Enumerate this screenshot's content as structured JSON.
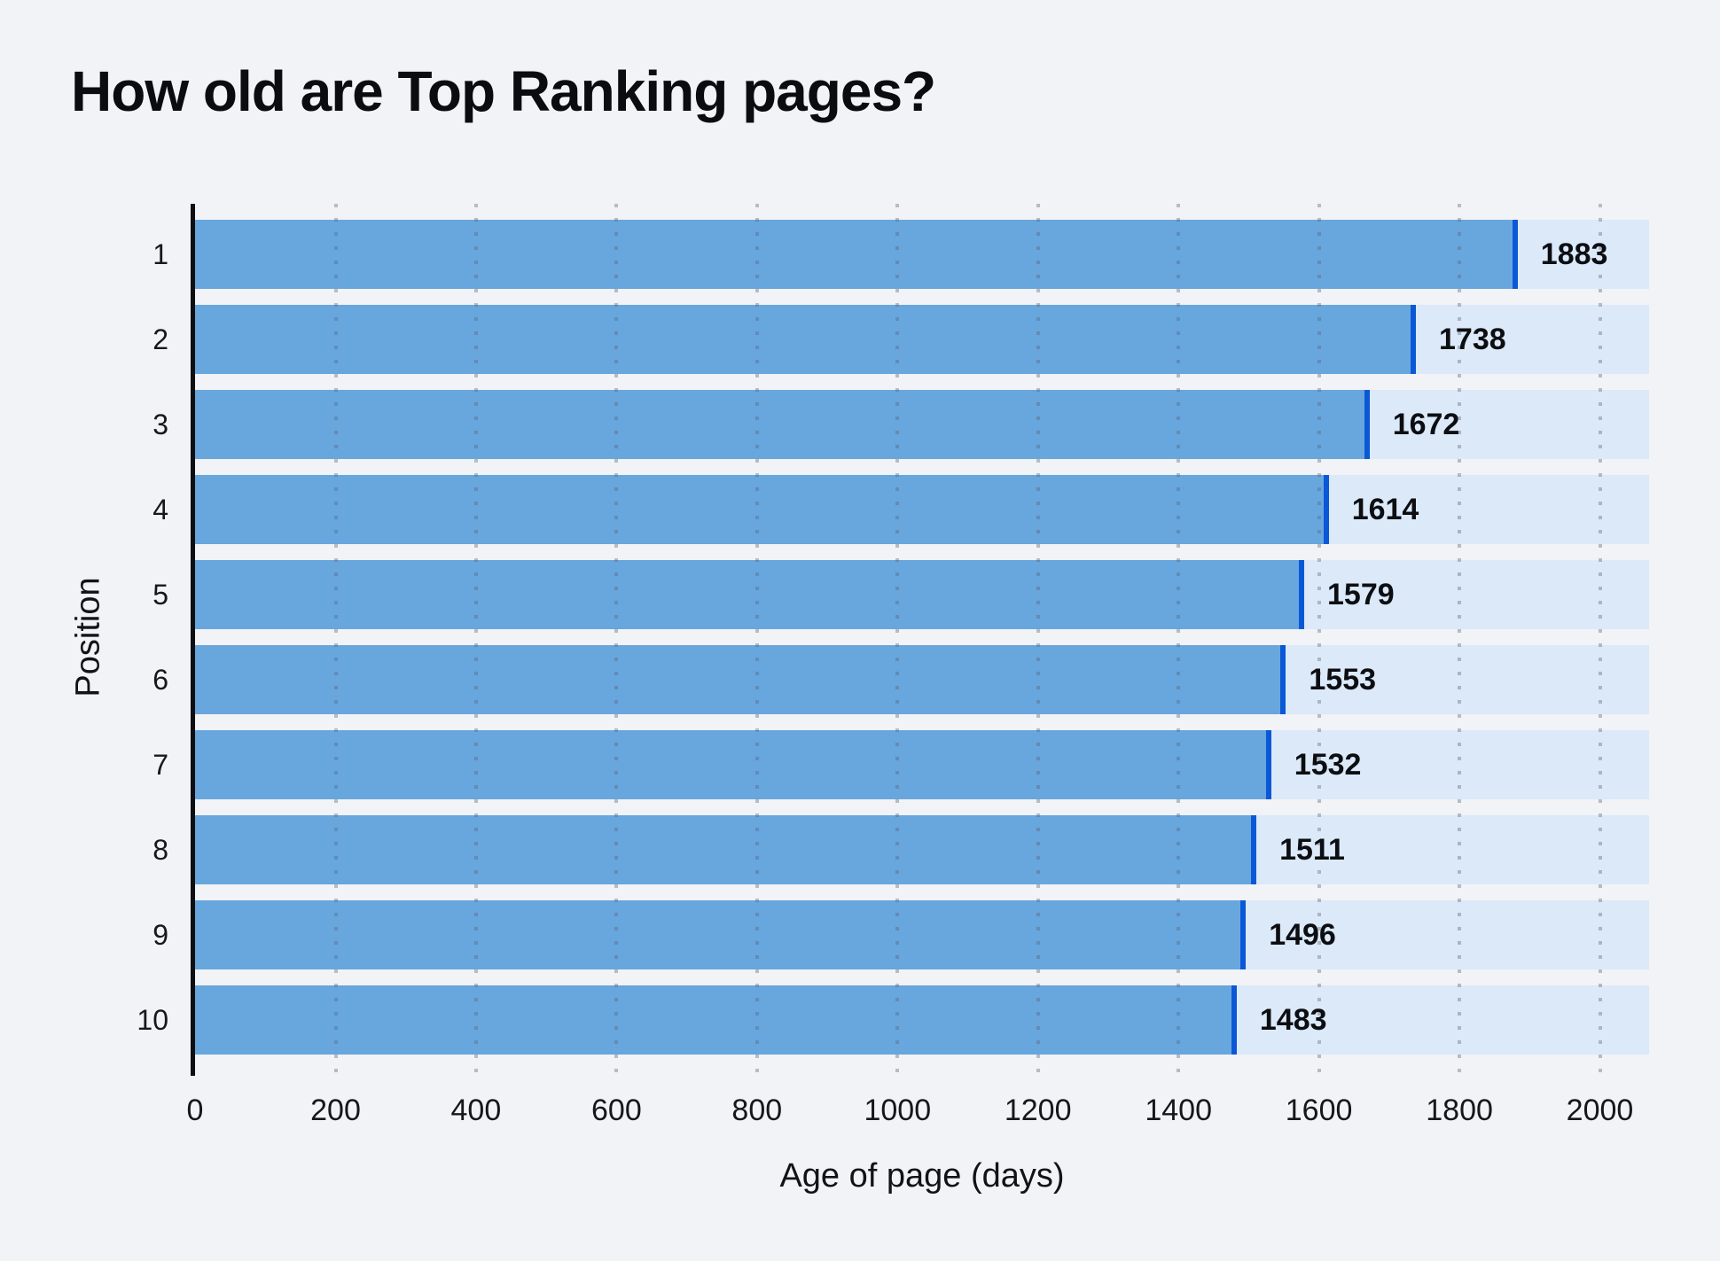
{
  "title": "How old are Top Ranking pages?",
  "chart_data": {
    "type": "bar",
    "orientation": "horizontal",
    "title": "How old are Top Ranking pages?",
    "xlabel": "Age of page (days)",
    "ylabel": "Position",
    "categories": [
      "1",
      "2",
      "3",
      "4",
      "5",
      "6",
      "7",
      "8",
      "9",
      "10"
    ],
    "values": [
      1883,
      1738,
      1672,
      1614,
      1579,
      1553,
      1532,
      1511,
      1496,
      1483
    ],
    "bar_labels": [
      "1883",
      "1738",
      "1672",
      "1614",
      "1579",
      "1553",
      "1532",
      "1511",
      "1496",
      "1483"
    ],
    "xticks": [
      0,
      200,
      400,
      600,
      800,
      1000,
      1200,
      1400,
      1600,
      1800,
      2000
    ],
    "xlim": [
      0,
      2070
    ],
    "grid": "dotted-vertical",
    "legend": "none",
    "colors": {
      "background": "#f1f3f6",
      "bar_fill": "#68a6de",
      "bar_end_cap": "#0b58d6",
      "bar_track": "#dbe9f9",
      "axis_line": "#0e0f11",
      "text": "#0c0e12",
      "grid_dot": "rgba(88,99,114,0.38)"
    }
  }
}
